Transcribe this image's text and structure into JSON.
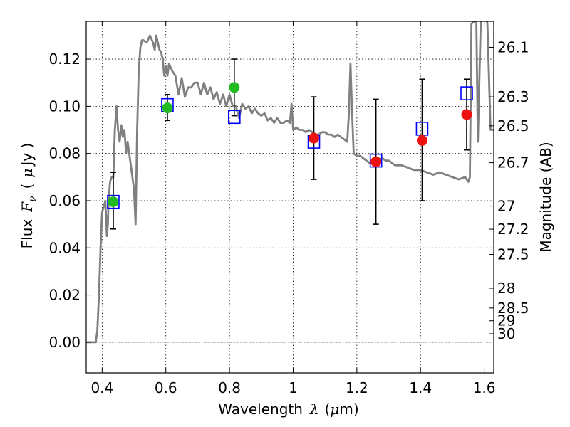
{
  "chart_data": {
    "type": "scatter",
    "title": "",
    "xlabel": {
      "text": "Wavelength",
      "symbol": "λ",
      "unit_open": "(",
      "unit_mu": "μ",
      "unit_rest": "m)"
    },
    "ylabel": {
      "text": "Flux",
      "symbol": "F",
      "subscript": "ν",
      "unit_open": "(",
      "unit_mu": "μ",
      "unit_rest": "Jy )"
    },
    "y2label": "Magnitude (AB)",
    "xlim": [
      0.35,
      1.63
    ],
    "ylim": [
      -0.013,
      0.136
    ],
    "grid": true,
    "x_ticks": [
      {
        "v": 0.4,
        "label": "0.4"
      },
      {
        "v": 0.6,
        "label": "0.6"
      },
      {
        "v": 0.8,
        "label": "0.8"
      },
      {
        "v": 1.0,
        "label": "1"
      },
      {
        "v": 1.2,
        "label": "1.2"
      },
      {
        "v": 1.4,
        "label": "1.4"
      },
      {
        "v": 1.6,
        "label": "1.6"
      }
    ],
    "y_ticks": [
      {
        "v": 0.0,
        "label": "0.00"
      },
      {
        "v": 0.02,
        "label": "0.02"
      },
      {
        "v": 0.04,
        "label": "0.04"
      },
      {
        "v": 0.06,
        "label": "0.06"
      },
      {
        "v": 0.08,
        "label": "0.08"
      },
      {
        "v": 0.1,
        "label": "0.10"
      },
      {
        "v": 0.12,
        "label": "0.12"
      }
    ],
    "magnitude_ticks": [
      {
        "v": 0.125,
        "label": "26.1"
      },
      {
        "v": 0.104,
        "label": "26.3"
      },
      {
        "v": 0.0917,
        "label": "26.5"
      },
      {
        "v": 0.0761,
        "label": "26.7"
      },
      {
        "v": 0.0577,
        "label": "27"
      },
      {
        "v": 0.0479,
        "label": "27.2"
      },
      {
        "v": 0.0372,
        "label": "27.5"
      },
      {
        "v": 0.0229,
        "label": "28"
      },
      {
        "v": 0.0145,
        "label": "28.5"
      },
      {
        "v": 0.0091,
        "label": "29"
      },
      {
        "v": 0.0036,
        "label": "30"
      }
    ],
    "template_spectrum": {
      "color": "#808080",
      "x": [
        0.35,
        0.38,
        0.385,
        0.39,
        0.395,
        0.4,
        0.41,
        0.415,
        0.418,
        0.42,
        0.425,
        0.43,
        0.435,
        0.44,
        0.445,
        0.45,
        0.455,
        0.46,
        0.465,
        0.47,
        0.475,
        0.48,
        0.49,
        0.5,
        0.505,
        0.51,
        0.515,
        0.52,
        0.525,
        0.53,
        0.54,
        0.55,
        0.56,
        0.565,
        0.57,
        0.58,
        0.585,
        0.59,
        0.595,
        0.6,
        0.605,
        0.61,
        0.62,
        0.63,
        0.64,
        0.65,
        0.66,
        0.67,
        0.68,
        0.69,
        0.7,
        0.71,
        0.72,
        0.73,
        0.74,
        0.75,
        0.76,
        0.77,
        0.78,
        0.79,
        0.8,
        0.81,
        0.82,
        0.83,
        0.84,
        0.85,
        0.86,
        0.87,
        0.88,
        0.89,
        0.9,
        0.91,
        0.92,
        0.93,
        0.94,
        0.95,
        0.96,
        0.97,
        0.98,
        0.99,
        0.995,
        1.0,
        1.01,
        1.02,
        1.03,
        1.04,
        1.05,
        1.06,
        1.07,
        1.08,
        1.09,
        1.1,
        1.11,
        1.12,
        1.13,
        1.14,
        1.15,
        1.16,
        1.17,
        1.175,
        1.18,
        1.185,
        1.19,
        1.2,
        1.21,
        1.22,
        1.23,
        1.24,
        1.25,
        1.26,
        1.27,
        1.28,
        1.29,
        1.3,
        1.32,
        1.34,
        1.36,
        1.38,
        1.4,
        1.42,
        1.44,
        1.46,
        1.48,
        1.5,
        1.52,
        1.54,
        1.55,
        1.555,
        1.56,
        1.57,
        1.575,
        1.58,
        1.59,
        1.6,
        1.61,
        1.62,
        1.63
      ],
      "y": [
        0.0,
        0.0,
        0.005,
        0.02,
        0.04,
        0.055,
        0.06,
        0.045,
        0.05,
        0.06,
        0.068,
        0.07,
        0.07,
        0.09,
        0.1,
        0.09,
        0.085,
        0.092,
        0.087,
        0.09,
        0.08,
        0.085,
        0.075,
        0.065,
        0.05,
        0.09,
        0.115,
        0.125,
        0.128,
        0.128,
        0.127,
        0.13,
        0.127,
        0.124,
        0.13,
        0.124,
        0.123,
        0.12,
        0.113,
        0.117,
        0.113,
        0.118,
        0.115,
        0.113,
        0.105,
        0.112,
        0.104,
        0.108,
        0.108,
        0.11,
        0.11,
        0.105,
        0.11,
        0.105,
        0.108,
        0.103,
        0.106,
        0.101,
        0.105,
        0.1,
        0.105,
        0.1,
        0.1,
        0.095,
        0.101,
        0.099,
        0.1,
        0.097,
        0.099,
        0.097,
        0.096,
        0.097,
        0.094,
        0.095,
        0.093,
        0.095,
        0.093,
        0.093,
        0.094,
        0.093,
        0.101,
        0.09,
        0.091,
        0.09,
        0.09,
        0.089,
        0.09,
        0.089,
        0.088,
        0.088,
        0.089,
        0.089,
        0.088,
        0.088,
        0.087,
        0.088,
        0.087,
        0.086,
        0.085,
        0.097,
        0.118,
        0.098,
        0.08,
        0.079,
        0.079,
        0.078,
        0.077,
        0.076,
        0.076,
        0.076,
        0.077,
        0.078,
        0.077,
        0.077,
        0.075,
        0.075,
        0.074,
        0.073,
        0.073,
        0.072,
        0.071,
        0.072,
        0.071,
        0.07,
        0.069,
        0.07,
        0.068,
        0.07,
        0.135,
        0.136,
        0.14,
        0.085,
        0.14,
        0.14,
        0.135,
        0.09,
        0.09
      ]
    },
    "error_bars": [
      {
        "x": 0.435,
        "lo": 0.048,
        "hi": 0.072
      },
      {
        "x": 0.605,
        "lo": 0.094,
        "hi": 0.105
      },
      {
        "x": 0.815,
        "lo": 0.096,
        "hi": 0.12
      },
      {
        "x": 1.065,
        "lo": 0.069,
        "hi": 0.104
      },
      {
        "x": 1.26,
        "lo": 0.05,
        "hi": 0.103
      },
      {
        "x": 1.405,
        "lo": 0.06,
        "hi": 0.1115
      },
      {
        "x": 1.545,
        "lo": 0.0815,
        "hi": 0.1115
      }
    ],
    "series": [
      {
        "marker": "open-square",
        "color": "#0000ff",
        "points": [
          {
            "x": 0.435,
            "y": 0.0595
          },
          {
            "x": 0.605,
            "y": 0.1005
          },
          {
            "x": 0.815,
            "y": 0.0955
          },
          {
            "x": 1.065,
            "y": 0.085
          },
          {
            "x": 1.26,
            "y": 0.077
          },
          {
            "x": 1.405,
            "y": 0.0905
          },
          {
            "x": 1.545,
            "y": 0.1055
          }
        ]
      },
      {
        "marker": "filled-circle",
        "color": "#22bb22",
        "points": [
          {
            "x": 0.435,
            "y": 0.0595
          },
          {
            "x": 0.605,
            "y": 0.0993
          },
          {
            "x": 0.815,
            "y": 0.108
          }
        ]
      },
      {
        "marker": "filled-circle",
        "color": "#ee1111",
        "points": [
          {
            "x": 1.065,
            "y": 0.0865
          },
          {
            "x": 1.26,
            "y": 0.0765
          },
          {
            "x": 1.405,
            "y": 0.0855
          },
          {
            "x": 1.545,
            "y": 0.0965
          }
        ]
      }
    ]
  }
}
